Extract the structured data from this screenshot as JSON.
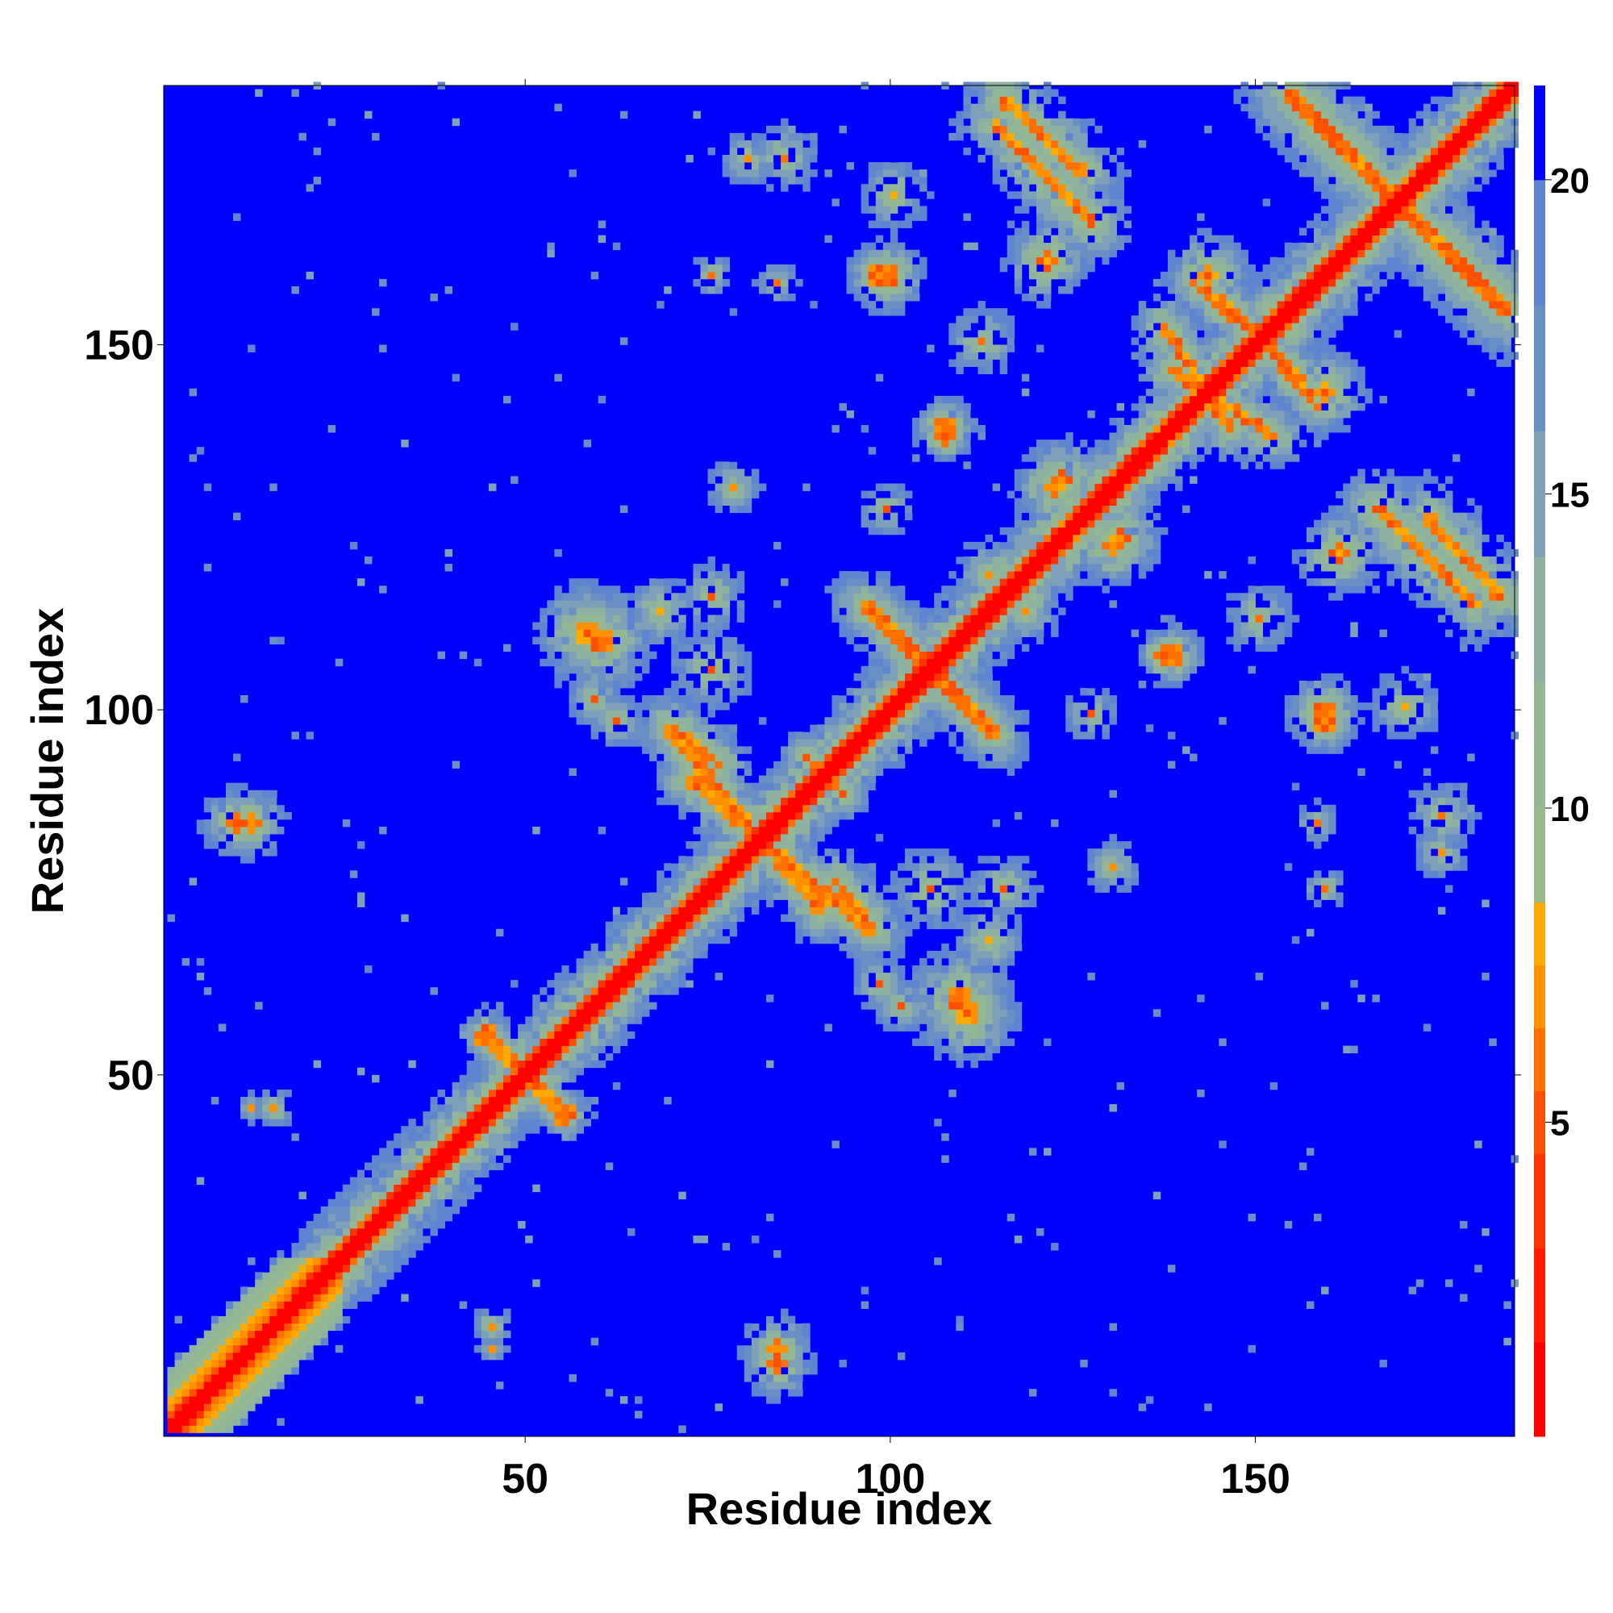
{
  "chart_data": {
    "type": "heatmap",
    "title": "",
    "xlabel": "Residue index",
    "ylabel": "Residue index",
    "xlim": [
      1,
      185
    ],
    "ylim": [
      1,
      185
    ],
    "x_ticks": [
      50,
      100,
      150
    ],
    "y_ticks": [
      50,
      100,
      150
    ],
    "colorbar": {
      "range": [
        0,
        21.5
      ],
      "ticks": [
        5,
        10,
        15,
        20
      ],
      "levels": [
        {
          "to": 1.5,
          "color": "#ff0000"
        },
        {
          "to": 3,
          "color": "#ff1a00"
        },
        {
          "to": 4.5,
          "color": "#ff3300"
        },
        {
          "to": 5.5,
          "color": "#ff5000"
        },
        {
          "to": 6.5,
          "color": "#ff7000"
        },
        {
          "to": 7.5,
          "color": "#ff9000"
        },
        {
          "to": 8.5,
          "color": "#ffaa00"
        },
        {
          "to": 10,
          "color": "#9aba8a"
        },
        {
          "to": 12,
          "color": "#95b894"
        },
        {
          "to": 14,
          "color": "#8fb2a0"
        },
        {
          "to": 16,
          "color": "#7ea0b8"
        },
        {
          "to": 18,
          "color": "#6a8fc4"
        },
        {
          "to": 20,
          "color": "#5f84d0"
        },
        {
          "to": 21.5,
          "color": "#0000ff"
        }
      ]
    },
    "background_color": "#0000ff",
    "grid": false,
    "legend": "colorbar-right",
    "symmetric": true,
    "description_of_values": "distance between residues",
    "diagonal_band": [
      {
        "from": 1,
        "to": 185,
        "width_near": 2.5
      }
    ],
    "contact_segments": [
      {
        "kind": "anti",
        "x1": 44,
        "y1": 56,
        "x2": 55,
        "y2": 43,
        "width": 1.6,
        "halo": 3
      },
      {
        "kind": "anti",
        "x1": 72,
        "y1": 90,
        "x2": 97,
        "y2": 69,
        "width": 1.6,
        "halo": 5
      },
      {
        "kind": "anti",
        "x1": 96,
        "y1": 114,
        "x2": 114,
        "y2": 96,
        "width": 1.6,
        "halo": 5
      },
      {
        "kind": "anti",
        "x1": 115,
        "y1": 183,
        "x2": 126,
        "y2": 173,
        "width": 1.5,
        "halo": 6
      },
      {
        "kind": "anti",
        "x1": 154,
        "y1": 184,
        "x2": 182,
        "y2": 156,
        "width": 1.5,
        "halo": 7
      },
      {
        "kind": "anti",
        "x1": 137,
        "y1": 152,
        "x2": 146,
        "y2": 138,
        "width": 1.4,
        "halo": 5
      },
      {
        "kind": "anti",
        "x1": 141,
        "y1": 158,
        "x2": 156,
        "y2": 145,
        "width": 1.2,
        "halo": 4
      },
      {
        "kind": "anti",
        "x1": 166,
        "y1": 127,
        "x2": 180,
        "y2": 114,
        "width": 1.4,
        "halo": 6
      },
      {
        "kind": "para",
        "x1": 70,
        "y1": 97,
        "x2": 76,
        "y2": 92,
        "width": 1.2,
        "halo": 5
      },
      {
        "kind": "para",
        "x1": 88,
        "y1": 93,
        "x2": 93,
        "y2": 88,
        "width": 1.2,
        "halo": 4
      }
    ],
    "contact_blobs": [
      {
        "x": 58,
        "y": 110,
        "r": 1.5,
        "halo": 6
      },
      {
        "x": 98,
        "y": 159,
        "r": 1.5,
        "halo": 3
      },
      {
        "x": 107,
        "y": 138,
        "r": 1.5,
        "halo": 3
      },
      {
        "x": 109,
        "y": 60,
        "r": 1.5,
        "halo": 6
      },
      {
        "x": 137,
        "y": 107,
        "r": 1.3,
        "halo": 2
      },
      {
        "x": 159,
        "y": 99,
        "r": 1.5,
        "halo": 4
      },
      {
        "x": 84,
        "y": 12,
        "r": 1.2,
        "halo": 4
      },
      {
        "x": 10,
        "y": 84,
        "r": 1.2,
        "halo": 4
      },
      {
        "x": 98,
        "y": 62,
        "r": 0,
        "halo": 4
      },
      {
        "x": 59,
        "y": 101,
        "r": 0,
        "halo": 4
      },
      {
        "x": 122,
        "y": 130,
        "r": 1.2,
        "halo": 5
      },
      {
        "x": 131,
        "y": 123,
        "r": 1.2,
        "halo": 5
      },
      {
        "x": 121,
        "y": 161,
        "r": 1.2,
        "halo": 5
      },
      {
        "x": 143,
        "y": 159,
        "r": 1.2,
        "halo": 5
      },
      {
        "x": 118,
        "y": 113,
        "r": 0,
        "halo": 5
      },
      {
        "x": 68,
        "y": 113,
        "r": 0,
        "halo": 5
      },
      {
        "x": 78,
        "y": 130,
        "r": 0,
        "halo": 4
      },
      {
        "x": 85,
        "y": 175,
        "r": 0,
        "halo": 5
      },
      {
        "x": 170,
        "y": 100,
        "r": 0,
        "halo": 5
      },
      {
        "x": 175,
        "y": 80,
        "r": 0,
        "halo": 4
      },
      {
        "x": 159,
        "y": 75,
        "r": 0,
        "halo": 3
      },
      {
        "x": 45,
        "y": 12,
        "r": 0,
        "halo": 2
      },
      {
        "x": 15,
        "y": 45,
        "r": 0,
        "halo": 3
      },
      {
        "x": 127,
        "y": 99,
        "r": 0,
        "halo": 4
      },
      {
        "x": 75,
        "y": 115,
        "r": 0,
        "halo": 5
      },
      {
        "x": 150,
        "y": 112,
        "r": 0,
        "halo": 5
      },
      {
        "x": 105,
        "y": 75,
        "r": 0,
        "halo": 6
      },
      {
        "x": 84,
        "y": 158,
        "r": 0,
        "halo": 3
      }
    ]
  }
}
